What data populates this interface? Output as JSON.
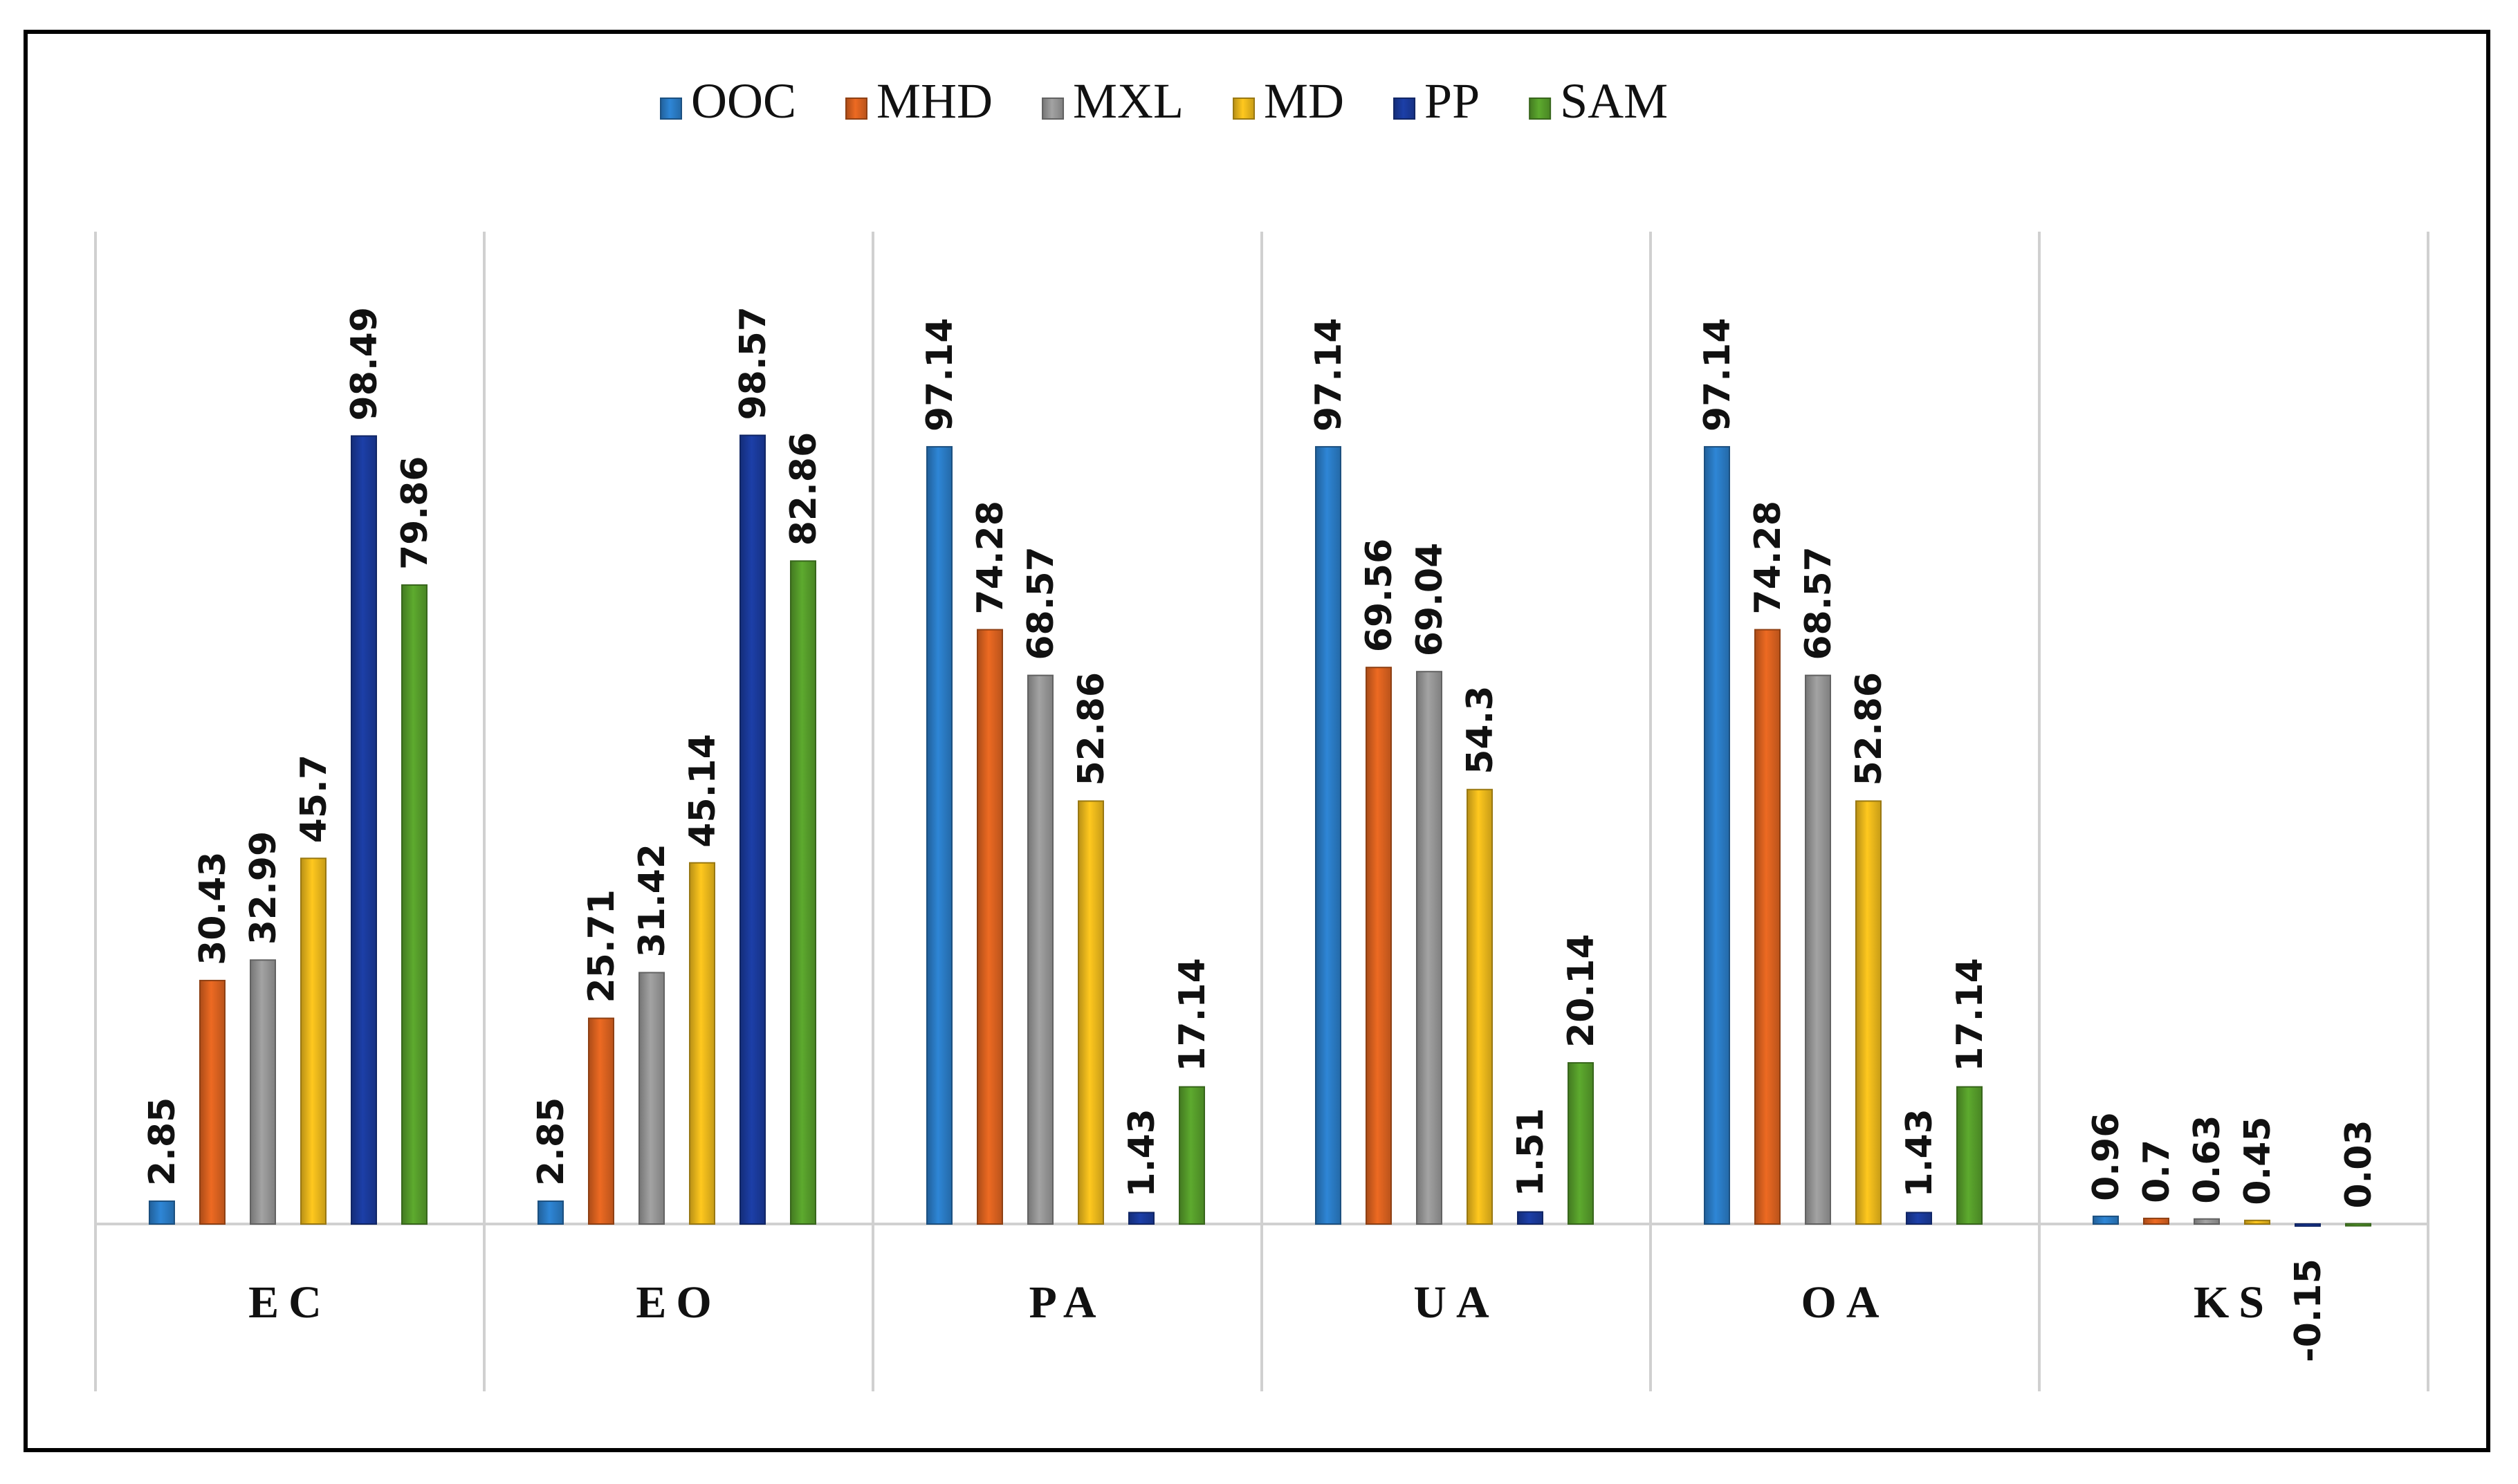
{
  "chart_data": {
    "type": "bar",
    "title": "",
    "xlabel": "",
    "ylabel": "",
    "ylim": [
      -20,
      100
    ],
    "grid": false,
    "legend_position": "top-center",
    "categories": [
      "EC",
      "EO",
      "PA",
      "UA",
      "OA",
      "KS"
    ],
    "series": [
      {
        "name": "OOC",
        "color": "#2E86D6",
        "values": [
          2.85,
          2.85,
          97.14,
          97.14,
          97.14,
          0.96
        ],
        "labels": [
          "2.85",
          "2.85",
          "97.14",
          "97.14",
          "97.14",
          "0.96"
        ]
      },
      {
        "name": "MHD",
        "color": "#ED6A22",
        "values": [
          30.43,
          25.71,
          74.28,
          69.56,
          74.28,
          0.7
        ],
        "labels": [
          "30.43",
          "25.71",
          "74.28",
          "69.56",
          "74.28",
          "0.7"
        ]
      },
      {
        "name": "MXL",
        "color": "#A3A3A3",
        "values": [
          32.99,
          31.42,
          68.57,
          69.04,
          68.57,
          0.63
        ],
        "labels": [
          "32.99",
          "31.42",
          "68.57",
          "69.04",
          "68.57",
          "0.63"
        ]
      },
      {
        "name": "MD",
        "color": "#FFC81E",
        "values": [
          45.7,
          45.14,
          52.86,
          54.3,
          52.86,
          0.45
        ],
        "labels": [
          "45.7",
          "45.14",
          "52.86",
          "54.3",
          "52.86",
          "0.45"
        ]
      },
      {
        "name": "PP",
        "color": "#1C3FA8",
        "values": [
          98.49,
          98.57,
          1.43,
          1.51,
          1.43,
          -0.15
        ],
        "labels": [
          "98.49",
          "98.57",
          "1.43",
          "1.51",
          "1.43",
          "-0.15"
        ]
      },
      {
        "name": "SAM",
        "color": "#5DAA2E",
        "values": [
          79.86,
          82.86,
          17.14,
          20.14,
          17.14,
          0.03
        ],
        "labels": [
          "79.86",
          "82.86",
          "17.14",
          "20.14",
          "17.14",
          "0.03"
        ]
      }
    ]
  }
}
